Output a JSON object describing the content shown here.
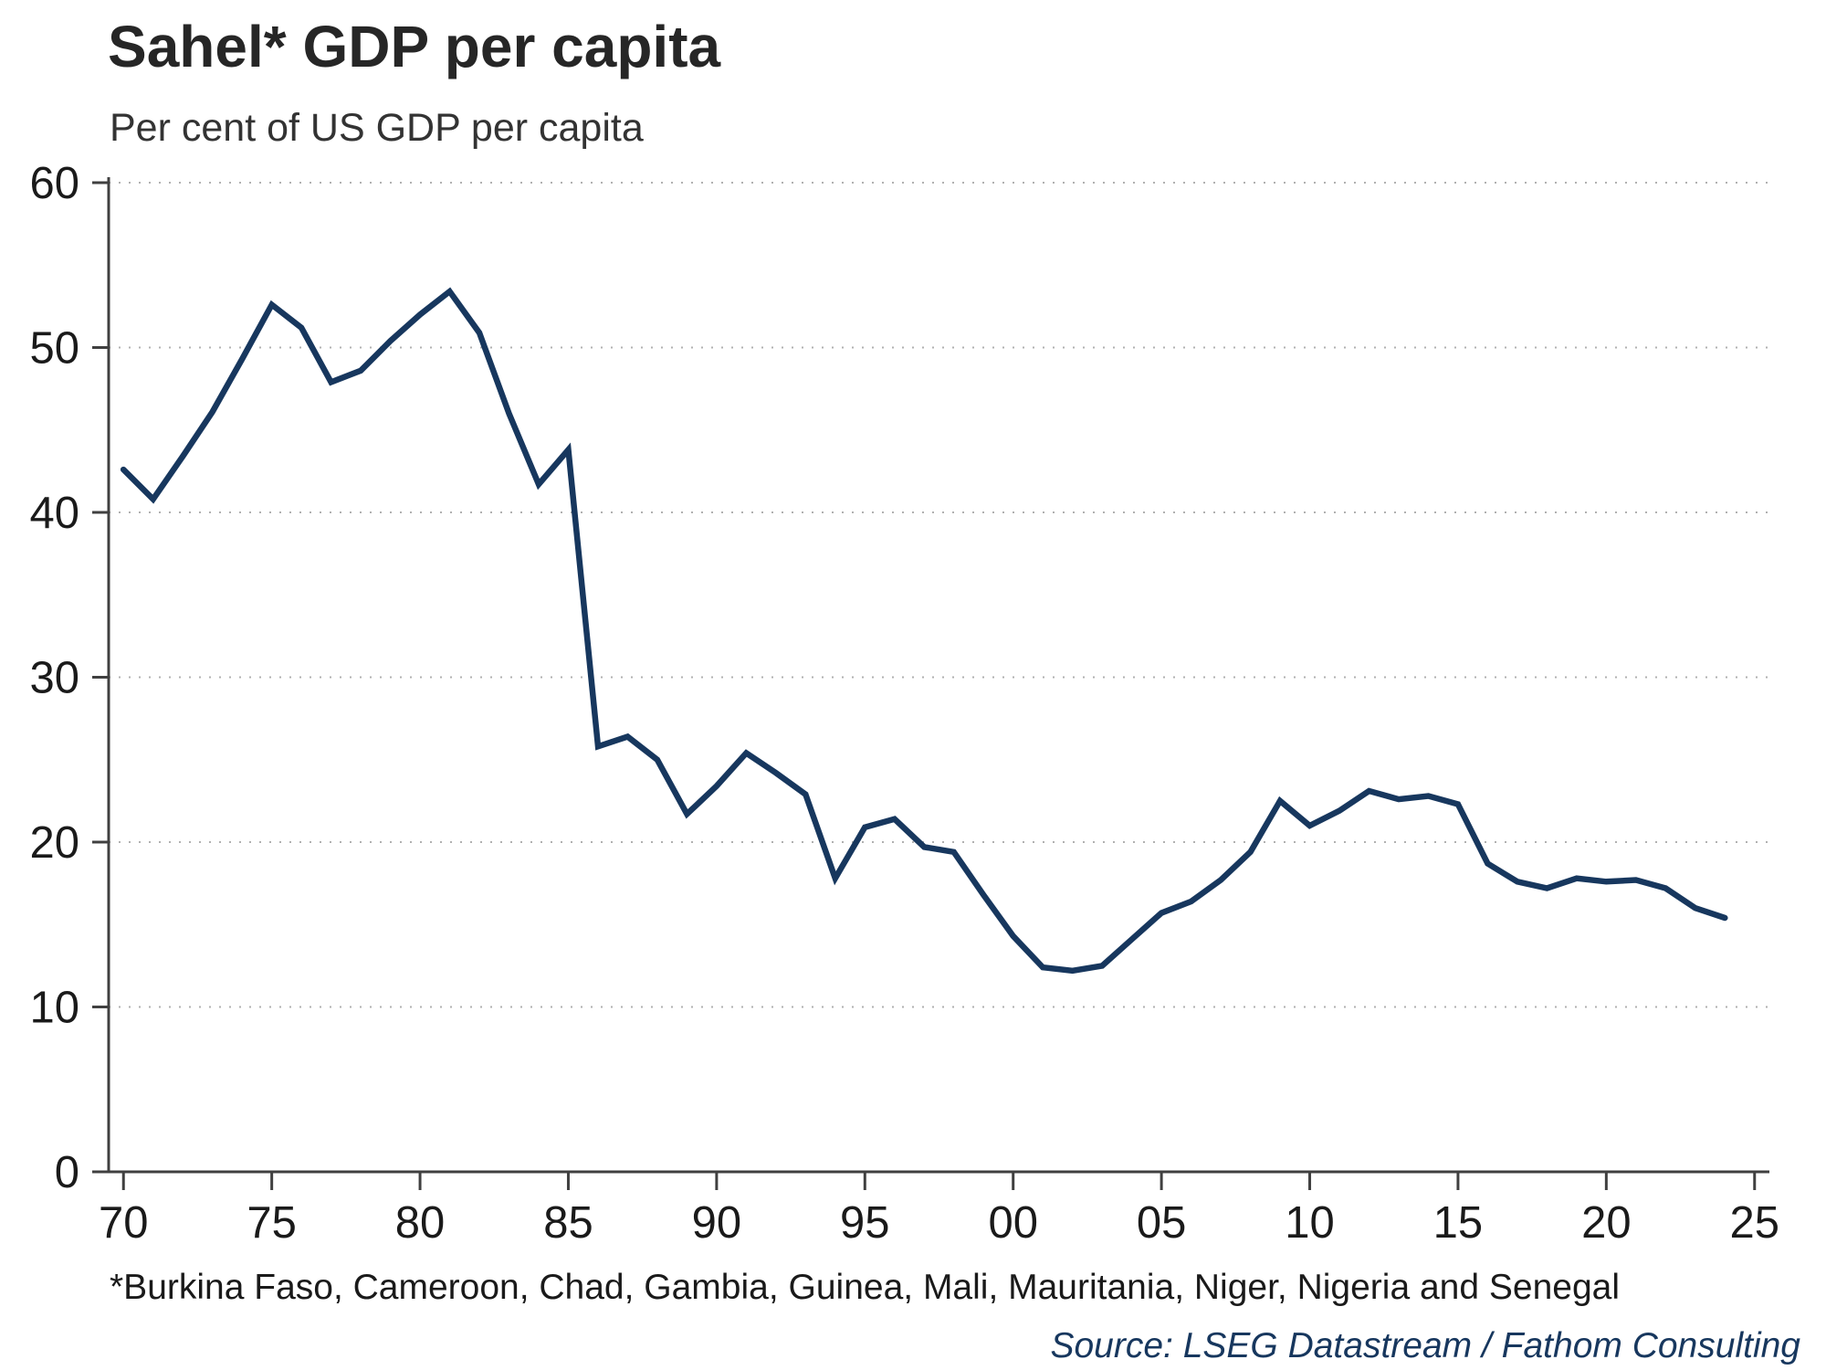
{
  "page": {
    "title": "Sahel* GDP per capita",
    "subtitle": "Per cent of US GDP per capita",
    "footnote": "*Burkina Faso, Cameroon, Chad, Gambia, Guinea, Mali, Mauritania, Niger, Nigeria and Senegal",
    "source": "Source: LSEG Datastream / Fathom Consulting"
  },
  "chart_data": {
    "type": "line",
    "title": "Sahel* GDP per capita",
    "subtitle": "Per cent of US GDP per capita",
    "xlabel": "",
    "ylabel": "Per cent of US GDP per capita",
    "xlim": [
      1969.5,
      2025.5
    ],
    "ylim": [
      0,
      60
    ],
    "grid": "horizontal-dotted",
    "legend": "none",
    "line_color": "#17375e",
    "axis_color": "#404040",
    "grid_color": "#b0b0b0",
    "y_ticks": [
      0,
      10,
      20,
      30,
      40,
      50,
      60
    ],
    "y_tick_labels": [
      "0",
      "10",
      "20",
      "30",
      "40",
      "50",
      "60"
    ],
    "x_ticks": [
      1970,
      1975,
      1980,
      1985,
      1990,
      1995,
      2000,
      2005,
      2010,
      2015,
      2020,
      2025
    ],
    "x_tick_labels": [
      "70",
      "75",
      "80",
      "85",
      "90",
      "95",
      "00",
      "05",
      "10",
      "15",
      "20",
      "25"
    ],
    "series": [
      {
        "name": "Sahel GDP per capita as % of US GDP per capita",
        "x": [
          1970,
          1971,
          1972,
          1973,
          1974,
          1975,
          1976,
          1977,
          1978,
          1979,
          1980,
          1981,
          1982,
          1983,
          1984,
          1985,
          1986,
          1987,
          1988,
          1989,
          1990,
          1991,
          1992,
          1993,
          1994,
          1995,
          1996,
          1997,
          1998,
          1999,
          2000,
          2001,
          2002,
          2003,
          2004,
          2005,
          2006,
          2007,
          2008,
          2009,
          2010,
          2011,
          2012,
          2013,
          2014,
          2015,
          2016,
          2017,
          2018,
          2019,
          2020,
          2021,
          2022,
          2023,
          2024
        ],
        "values": [
          42.6,
          40.8,
          43.4,
          46.1,
          49.3,
          52.6,
          51.2,
          47.9,
          48.6,
          50.4,
          52.0,
          53.4,
          50.9,
          46.0,
          41.7,
          43.8,
          25.8,
          26.4,
          25.0,
          21.7,
          23.4,
          25.4,
          24.2,
          22.9,
          17.8,
          20.9,
          21.4,
          19.7,
          19.4,
          16.8,
          14.3,
          12.4,
          12.2,
          12.5,
          14.1,
          15.7,
          16.4,
          17.7,
          19.4,
          22.5,
          21.0,
          21.9,
          23.1,
          22.6,
          22.8,
          22.3,
          18.7,
          17.6,
          17.2,
          17.8,
          17.6,
          17.7,
          17.2,
          16.0,
          15.4
        ]
      }
    ],
    "footnote": "*Burkina Faso, Cameroon, Chad, Gambia, Guinea, Mali, Mauritania, Niger, Nigeria and Senegal",
    "source": "Source: LSEG Datastream / Fathom Consulting"
  }
}
